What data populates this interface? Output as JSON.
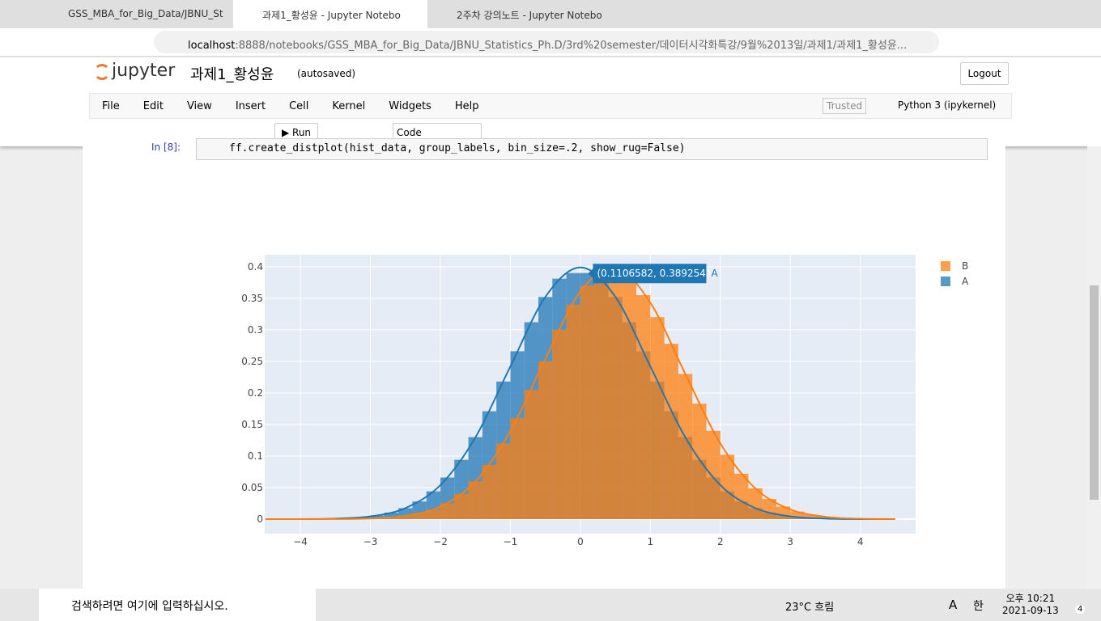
{
  "browser": {
    "tabs": [
      "GSS_MBA_for_Big_Data/JBNU_St",
      "과제1_황성윤 - Jupyter Notebo",
      "2주차 강의노트 - Jupyter Notebo"
    ],
    "url_host": "localhost",
    "url_rest": ":8888/notebooks/GSS_MBA_for_Big_Data/JBNU_Statistics_Ph.D/3rd%20semester/데이터시각화특강/9월%2013일/과제1/과제1_황성윤..."
  },
  "notebook": {
    "logo": "jupyter",
    "name": "과제1_황성윤",
    "status": "(autosaved)",
    "logout": "Logout",
    "menu": [
      "File",
      "Edit",
      "View",
      "Insert",
      "Cell",
      "Kernel",
      "Widgets",
      "Help"
    ],
    "trusted": "Trusted",
    "kernel": "Python 3 (ipykernel)",
    "run": "Run",
    "cell_type": "Code",
    "prompt": "In [8]:",
    "line_no": "1",
    "code": "ff.create_distplot(hist_data, group_labels, bin_size=.2, show_rug=False)"
  },
  "taskbar": {
    "search": "검색하려면 여기에 입력하십시오.",
    "weather": "23°C 흐림",
    "ime1": "A",
    "ime2": "한",
    "time": "오후 10:21",
    "date": "2021-09-13",
    "badge": "4"
  },
  "chart_data": {
    "type": "histogram",
    "bins": [
      -3.4,
      -3.2,
      -3.0,
      -2.8,
      -2.6,
      -2.4,
      -2.2,
      -2.0,
      -1.8,
      -1.6,
      -1.4,
      -1.2,
      -1.0,
      -0.8,
      -0.6,
      -0.4,
      -0.2,
      0.0,
      0.2,
      0.4,
      0.6,
      0.8,
      1.0,
      1.2,
      1.4,
      1.6,
      1.8,
      2.0,
      2.2,
      2.4,
      2.6,
      2.8,
      3.0,
      3.2,
      3.4,
      3.6,
      3.8,
      4.0,
      4.2,
      4.4,
      4.6
    ],
    "series": [
      {
        "name": "B",
        "color": "#ff7f0e",
        "values": [
          0.0004,
          0.0007,
          0.0015,
          0.003,
          0.005,
          0.009,
          0.015,
          0.025,
          0.04,
          0.06,
          0.086,
          0.12,
          0.16,
          0.205,
          0.25,
          0.3,
          0.34,
          0.37,
          0.385,
          0.383,
          0.378,
          0.355,
          0.32,
          0.278,
          0.23,
          0.183,
          0.14,
          0.102,
          0.072,
          0.049,
          0.032,
          0.02,
          0.012,
          0.007,
          0.004,
          0.002,
          0.001,
          0.0005,
          0.0002,
          0.0001
        ],
        "curve_values": [
          0,
          0,
          0.0002,
          0.001,
          0.0051,
          0.0198,
          0.0596,
          0.1394,
          0.2541,
          0.3605,
          0.3984,
          0.3429,
          0.2299,
          0.12,
          0.0488,
          0.0154,
          0.0038,
          0.0007,
          0.0001
        ]
      },
      {
        "name": "A",
        "color": "#1f77b4",
        "values": [
          0.0017,
          0.0033,
          0.006,
          0.0104,
          0.0175,
          0.028,
          0.044,
          0.066,
          0.094,
          0.13,
          0.171,
          0.218,
          0.266,
          0.312,
          0.352,
          0.381,
          0.39,
          0.39,
          0.38,
          0.352,
          0.312,
          0.266,
          0.218,
          0.171,
          0.13,
          0.094,
          0.066,
          0.044,
          0.028,
          0.0175,
          0.0104,
          0.006,
          0.0033,
          0.0017,
          0.0009,
          0,
          0,
          0,
          0,
          0
        ],
        "curve_values": [
          0,
          0.0001,
          0.0009,
          0.0044,
          0.0175,
          0.054,
          0.1295,
          0.242,
          0.3521,
          0.3989,
          0.3521,
          0.242,
          0.1295,
          0.054,
          0.0175,
          0.0044,
          0.0009,
          0.0001,
          0
        ]
      }
    ],
    "curve_x": [
      -4.5,
      -4,
      -3.5,
      -3,
      -2.5,
      -2,
      -1.5,
      -1,
      -0.5,
      0,
      0.5,
      1,
      1.5,
      2,
      2.5,
      3,
      3.5,
      4,
      4.5
    ],
    "xlim": [
      -4.51,
      4.79
    ],
    "ylim": [
      -0.023,
      0.419
    ],
    "xticks": [
      {
        "value": -4,
        "label": "−4"
      },
      {
        "value": -3,
        "label": "−3"
      },
      {
        "value": -2,
        "label": "−2"
      },
      {
        "value": -1,
        "label": "−1"
      },
      0,
      1,
      2,
      3,
      4
    ],
    "yticks": [
      0,
      0.05,
      0.1,
      0.15,
      0.2,
      0.25,
      0.3,
      0.35,
      0.4
    ],
    "grid": true,
    "legend": "upper-right",
    "hover": {
      "x": 0.1106582,
      "y": 0.3892541,
      "text": "(0.1106582, 0.3892541)",
      "name": "A"
    }
  }
}
